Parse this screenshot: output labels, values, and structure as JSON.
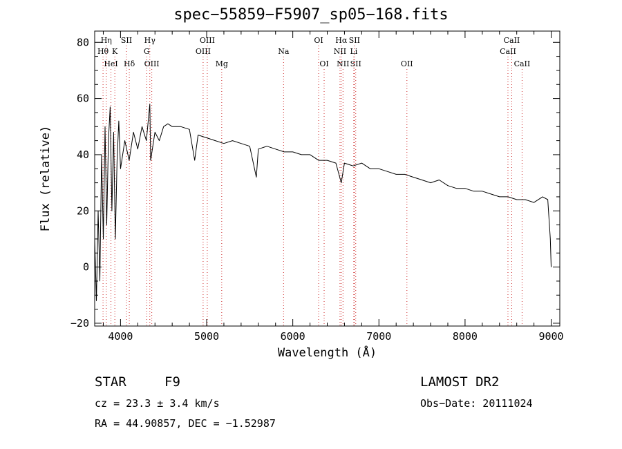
{
  "chart_data": {
    "type": "line",
    "title": "spec−55859−F5907_sp05−168.fits",
    "xlabel": "Wavelength (Å)",
    "ylabel": "Flux (relative)",
    "xlim": [
      3700,
      9100
    ],
    "ylim": [
      -21,
      84
    ],
    "x_ticks": [
      4000,
      5000,
      6000,
      7000,
      8000,
      9000
    ],
    "x_tick_labels": [
      "4000",
      "5000",
      "6000",
      "7000",
      "8000",
      "9000"
    ],
    "y_ticks": [
      -20,
      0,
      20,
      40,
      60,
      80
    ],
    "y_tick_labels": [
      "−20",
      "0",
      "20",
      "40",
      "60",
      "80"
    ],
    "grid": false,
    "series": [
      {
        "x": [
          3700,
          3720,
          3740,
          3760,
          3780,
          3800,
          3820,
          3840,
          3860,
          3880,
          3900,
          3920,
          3940,
          3960,
          3980,
          4000,
          4050,
          4100,
          4150,
          4200,
          4250,
          4300,
          4340,
          4350,
          4400,
          4450,
          4500,
          4550,
          4600,
          4700,
          4800,
          4861,
          4900,
          5000,
          5100,
          5200,
          5300,
          5400,
          5500,
          5577,
          5600,
          5700,
          5800,
          5900,
          6000,
          6100,
          6200,
          6300,
          6400,
          6500,
          6563,
          6600,
          6700,
          6800,
          6900,
          7000,
          7100,
          7200,
          7300,
          7400,
          7500,
          7600,
          7700,
          7800,
          7900,
          8000,
          8100,
          8200,
          8300,
          8400,
          8500,
          8600,
          8700,
          8800,
          8900,
          8960,
          8990,
          9000
        ],
        "y": [
          10,
          -12,
          20,
          -5,
          40,
          10,
          50,
          15,
          45,
          57,
          20,
          48,
          10,
          38,
          52,
          35,
          45,
          38,
          48,
          42,
          50,
          45,
          58,
          38,
          48,
          45,
          50,
          51,
          50,
          50,
          49,
          38,
          47,
          46,
          45,
          44,
          45,
          44,
          43,
          32,
          42,
          43,
          42,
          41,
          41,
          40,
          40,
          38,
          38,
          37,
          30,
          37,
          36,
          37,
          35,
          35,
          34,
          33,
          33,
          32,
          31,
          30,
          31,
          29,
          28,
          28,
          27,
          27,
          26,
          25,
          25,
          24,
          24,
          23,
          25,
          24,
          10,
          0
        ]
      }
    ],
    "lines": [
      {
        "name": "Hη",
        "x": 3835,
        "row": 0
      },
      {
        "name": "Hθ",
        "x": 3797,
        "row": 1
      },
      {
        "name": "HeI",
        "x": 3889,
        "row": 2
      },
      {
        "name": "K",
        "x": 3934,
        "row": 1
      },
      {
        "name": "SII",
        "x": 4069,
        "row": 0
      },
      {
        "name": "Hδ",
        "x": 4102,
        "row": 2
      },
      {
        "name": "Hγ",
        "x": 4340,
        "row": 0
      },
      {
        "name": "G",
        "x": 4304,
        "row": 1
      },
      {
        "name": "OIII",
        "x": 4363,
        "row": 2
      },
      {
        "name": "OIII",
        "x": 5007,
        "row": 0
      },
      {
        "name": "OIII",
        "x": 4959,
        "row": 1
      },
      {
        "name": "Mg",
        "x": 5175,
        "row": 2
      },
      {
        "name": "Na",
        "x": 5893,
        "row": 1
      },
      {
        "name": "OI",
        "x": 6300,
        "row": 0
      },
      {
        "name": "OI",
        "x": 6364,
        "row": 2
      },
      {
        "name": "Hα",
        "x": 6563,
        "row": 0
      },
      {
        "name": "SII",
        "x": 6716,
        "row": 0
      },
      {
        "name": "NII",
        "x": 6548,
        "row": 1
      },
      {
        "name": "Li",
        "x": 6708,
        "row": 1
      },
      {
        "name": "NII",
        "x": 6583,
        "row": 2
      },
      {
        "name": "SII",
        "x": 6731,
        "row": 2
      },
      {
        "name": "OII",
        "x": 7325,
        "row": 2
      },
      {
        "name": "CaII",
        "x": 8542,
        "row": 0
      },
      {
        "name": "CaII",
        "x": 8498,
        "row": 1
      },
      {
        "name": "CaII",
        "x": 8662,
        "row": 2
      }
    ]
  },
  "info": {
    "class_label": "STAR",
    "subclass": "F9",
    "survey": "LAMOST DR2",
    "redshift": "cz = 23.3 ± 3.4 km/s",
    "obs_date": "Obs−Date: 20111024",
    "coords": "RA =  44.90857, DEC =  −1.52987"
  }
}
